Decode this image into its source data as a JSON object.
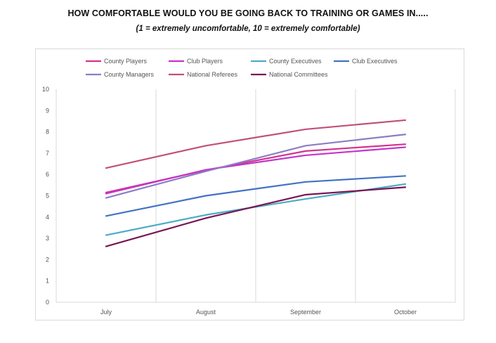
{
  "title": "HOW COMFORTABLE WOULD YOU BE GOING BACK TO TRAINING OR GAMES IN.....",
  "subtitle": "(1 = extremely uncomfortable, 10 = extremely comfortable)",
  "chart_data": {
    "type": "line",
    "title": "HOW COMFORTABLE WOULD YOU BE GOING BACK TO TRAINING OR GAMES IN.....",
    "subtitle": "(1 = extremely uncomfortable, 10 = extremely comfortable)",
    "xlabel": "",
    "ylabel": "",
    "categories": [
      "July",
      "August",
      "September",
      "October"
    ],
    "ylim": [
      0,
      10
    ],
    "yticks": [
      0,
      1,
      2,
      3,
      4,
      5,
      6,
      7,
      8,
      9,
      10
    ],
    "grid": "vertical lines at categories",
    "legend_position": "top",
    "series": [
      {
        "name": "County Players",
        "color": "#d4338f",
        "values": [
          5.15,
          6.2,
          7.1,
          7.42
        ]
      },
      {
        "name": "Club Players",
        "color": "#c434c9",
        "values": [
          5.1,
          6.22,
          6.9,
          7.28
        ]
      },
      {
        "name": "County Executives",
        "color": "#4bacc6",
        "values": [
          3.15,
          4.1,
          4.85,
          5.55
        ]
      },
      {
        "name": "Club Executives",
        "color": "#4472c4",
        "values": [
          4.05,
          5.0,
          5.65,
          5.93
        ]
      },
      {
        "name": "County Managers",
        "color": "#8e7cc3",
        "values": [
          4.9,
          6.15,
          7.35,
          7.88
        ]
      },
      {
        "name": "National Referees",
        "color": "#c0507a",
        "values": [
          6.3,
          7.35,
          8.12,
          8.55
        ]
      },
      {
        "name": "National Committees",
        "color": "#7b1552",
        "values": [
          2.62,
          3.95,
          5.05,
          5.4
        ]
      }
    ]
  }
}
